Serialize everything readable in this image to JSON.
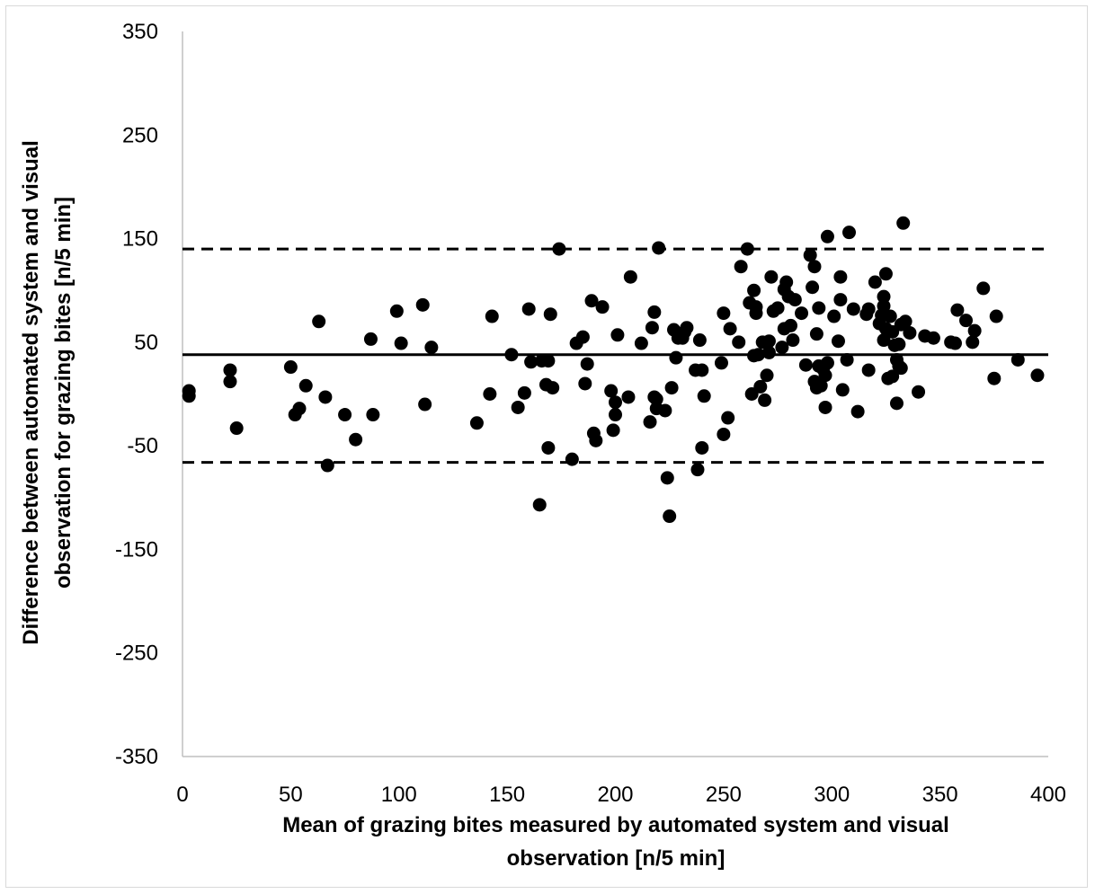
{
  "chart_data": {
    "type": "scatter",
    "xlabel_lines": [
      "Mean of grazing bites measured by automated system and visual",
      "observation [n/5 min]"
    ],
    "ylabel_lines": [
      "Difference between automated system and visual",
      "observation for grazing bites [n/5 min]"
    ],
    "xlim": [
      0,
      400
    ],
    "ylim": [
      -350,
      350
    ],
    "x_ticks": [
      0,
      50,
      100,
      150,
      200,
      250,
      300,
      350,
      400
    ],
    "y_ticks": [
      -350,
      -250,
      -150,
      -50,
      50,
      150,
      250,
      350
    ],
    "grid": false,
    "mean_line": 38,
    "limits_of_agreement": [
      140,
      -66
    ],
    "marker_color": "#000000",
    "points": [
      [
        3,
        3
      ],
      [
        3,
        -2
      ],
      [
        22,
        12
      ],
      [
        22,
        23
      ],
      [
        25,
        -33
      ],
      [
        50,
        26
      ],
      [
        52,
        -20
      ],
      [
        54,
        -14
      ],
      [
        57,
        8
      ],
      [
        63,
        70
      ],
      [
        66,
        -3
      ],
      [
        67,
        -69
      ],
      [
        75,
        -20
      ],
      [
        80,
        -44
      ],
      [
        87,
        53
      ],
      [
        88,
        -20
      ],
      [
        99,
        80
      ],
      [
        101,
        49
      ],
      [
        111,
        86
      ],
      [
        112,
        -10
      ],
      [
        115,
        45
      ],
      [
        136,
        -28
      ],
      [
        142,
        0
      ],
      [
        143,
        75
      ],
      [
        152,
        38
      ],
      [
        155,
        -13
      ],
      [
        158,
        1
      ],
      [
        160,
        82
      ],
      [
        161,
        31
      ],
      [
        165,
        -107
      ],
      [
        166,
        32
      ],
      [
        168,
        9
      ],
      [
        169,
        32
      ],
      [
        169,
        -52
      ],
      [
        170,
        77
      ],
      [
        171,
        6
      ],
      [
        174,
        140
      ],
      [
        180,
        -63
      ],
      [
        182,
        49
      ],
      [
        185,
        55
      ],
      [
        186,
        10
      ],
      [
        187,
        29
      ],
      [
        189,
        90
      ],
      [
        190,
        -38
      ],
      [
        191,
        -45
      ],
      [
        194,
        84
      ],
      [
        198,
        3
      ],
      [
        199,
        -35
      ],
      [
        200,
        -20
      ],
      [
        200,
        -8
      ],
      [
        201,
        57
      ],
      [
        206,
        -3
      ],
      [
        207,
        113
      ],
      [
        212,
        49
      ],
      [
        216,
        -27
      ],
      [
        217,
        64
      ],
      [
        218,
        79
      ],
      [
        218,
        -3
      ],
      [
        219,
        -5
      ],
      [
        219,
        -14
      ],
      [
        220,
        141
      ],
      [
        223,
        -16
      ],
      [
        224,
        -81
      ],
      [
        225,
        -118
      ],
      [
        226,
        6
      ],
      [
        227,
        62
      ],
      [
        228,
        35
      ],
      [
        229,
        54
      ],
      [
        231,
        54
      ],
      [
        232,
        60
      ],
      [
        233,
        64
      ],
      [
        237,
        23
      ],
      [
        238,
        -73
      ],
      [
        239,
        52
      ],
      [
        240,
        23
      ],
      [
        240,
        -52
      ],
      [
        241,
        -2
      ],
      [
        249,
        30
      ],
      [
        250,
        78
      ],
      [
        250,
        -39
      ],
      [
        252,
        -23
      ],
      [
        253,
        63
      ],
      [
        257,
        50
      ],
      [
        258,
        123
      ],
      [
        261,
        140
      ],
      [
        262,
        88
      ],
      [
        263,
        0
      ],
      [
        264,
        37
      ],
      [
        264,
        100
      ],
      [
        265,
        78
      ],
      [
        265,
        84
      ],
      [
        266,
        38
      ],
      [
        267,
        7
      ],
      [
        268,
        50
      ],
      [
        269,
        -6
      ],
      [
        270,
        18
      ],
      [
        271,
        40
      ],
      [
        271,
        51
      ],
      [
        272,
        113
      ],
      [
        273,
        80
      ],
      [
        275,
        83
      ],
      [
        277,
        45
      ],
      [
        278,
        101
      ],
      [
        278,
        63
      ],
      [
        279,
        108
      ],
      [
        280,
        94
      ],
      [
        281,
        66
      ],
      [
        282,
        52
      ],
      [
        283,
        91
      ],
      [
        286,
        78
      ],
      [
        288,
        28
      ],
      [
        290,
        134
      ],
      [
        291,
        103
      ],
      [
        292,
        12
      ],
      [
        292,
        123
      ],
      [
        293,
        6
      ],
      [
        293,
        58
      ],
      [
        294,
        83
      ],
      [
        294,
        27
      ],
      [
        295,
        8
      ],
      [
        296,
        24
      ],
      [
        297,
        18
      ],
      [
        297,
        -13
      ],
      [
        298,
        30
      ],
      [
        298,
        152
      ],
      [
        301,
        75
      ],
      [
        303,
        51
      ],
      [
        304,
        91
      ],
      [
        304,
        113
      ],
      [
        305,
        4
      ],
      [
        307,
        33
      ],
      [
        308,
        156
      ],
      [
        310,
        82
      ],
      [
        312,
        -17
      ],
      [
        316,
        77
      ],
      [
        317,
        82
      ],
      [
        317,
        23
      ],
      [
        320,
        108
      ],
      [
        322,
        68
      ],
      [
        323,
        76
      ],
      [
        324,
        94
      ],
      [
        324,
        85
      ],
      [
        324,
        52
      ],
      [
        325,
        116
      ],
      [
        325,
        63
      ],
      [
        326,
        15
      ],
      [
        327,
        75
      ],
      [
        328,
        60
      ],
      [
        328,
        17
      ],
      [
        329,
        47
      ],
      [
        330,
        33
      ],
      [
        330,
        -9
      ],
      [
        331,
        48
      ],
      [
        331,
        27
      ],
      [
        332,
        25
      ],
      [
        332,
        67
      ],
      [
        333,
        165
      ],
      [
        334,
        70
      ],
      [
        336,
        59
      ],
      [
        340,
        2
      ],
      [
        343,
        56
      ],
      [
        347,
        54
      ],
      [
        355,
        50
      ],
      [
        357,
        49
      ],
      [
        358,
        81
      ],
      [
        362,
        71
      ],
      [
        365,
        50
      ],
      [
        366,
        61
      ],
      [
        370,
        102
      ],
      [
        375,
        15
      ],
      [
        376,
        75
      ],
      [
        386,
        33
      ],
      [
        395,
        18
      ]
    ]
  }
}
